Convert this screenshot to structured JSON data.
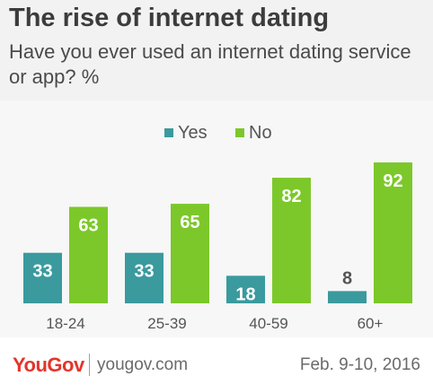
{
  "header": {
    "title": "The rise of internet dating",
    "subtitle": "Have you ever used an internet dating service or app? %"
  },
  "footer": {
    "brand": "YouGov",
    "website": "yougov.com",
    "date": "Feb. 9-10, 2016",
    "brand_color": "#e3352b"
  },
  "colors": {
    "yes": "#3a9a9e",
    "no": "#7cc82a",
    "background": "#f7f7f7",
    "header_background": "#f2f2f2"
  },
  "chart_data": {
    "type": "bar",
    "categories": [
      "18-24",
      "25-39",
      "40-59",
      "60+"
    ],
    "series": [
      {
        "name": "Yes",
        "values": [
          33,
          33,
          18,
          8
        ],
        "color": "#3a9a9e"
      },
      {
        "name": "No",
        "values": [
          63,
          65,
          82,
          92
        ],
        "color": "#7cc82a"
      }
    ],
    "title": "The rise of internet dating",
    "subtitle": "Have you ever used an internet dating service or app? %",
    "ylim": [
      0,
      100
    ],
    "grid": false,
    "legend": "top-center",
    "data_labels": true
  }
}
